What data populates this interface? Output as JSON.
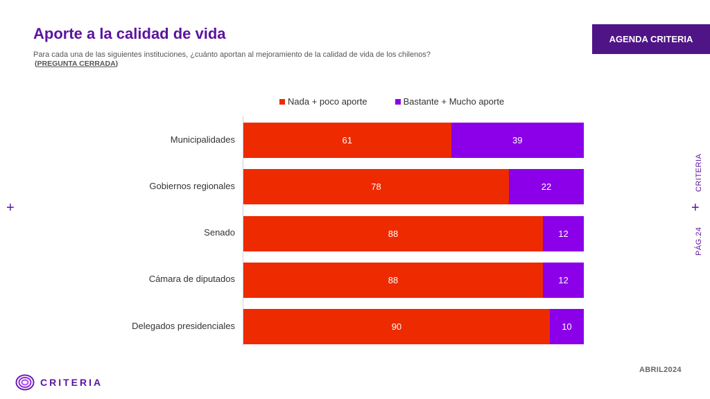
{
  "header": {
    "title": "Aporte a la calidad de vida",
    "subtitle": "Para cada una de las siguientes instituciones, ¿cuánto aportan al mejoramiento de la calidad de vida de los chilenos?",
    "question_type": "PREGUNTA CERRADA",
    "badge": "AGENDA CRITERIA"
  },
  "side": {
    "brand": "CRITERIA",
    "page": "PÁG.24",
    "plus": "+"
  },
  "footer": {
    "date": "ABRIL2024",
    "logo_text": "CRITERIA"
  },
  "colors": {
    "brand_purple": "#5B13A0",
    "badge_bg": "#4F1587",
    "series_red": "#EE2A00",
    "series_purple": "#8B00E8"
  },
  "chart_data": {
    "type": "bar",
    "orientation": "horizontal",
    "stacked": true,
    "legend_position": "top",
    "categories": [
      "Municipalidades",
      "Gobiernos regionales",
      "Senado",
      "Cámara de diputados",
      "Delegados presidenciales"
    ],
    "series": [
      {
        "name": "Nada + poco aporte",
        "color": "#EE2A00",
        "values": [
          61,
          78,
          88,
          88,
          90
        ]
      },
      {
        "name": "Bastante + Mucho aporte",
        "color": "#8B00E8",
        "values": [
          39,
          22,
          12,
          12,
          10
        ]
      }
    ],
    "xlim": [
      0,
      100
    ]
  }
}
